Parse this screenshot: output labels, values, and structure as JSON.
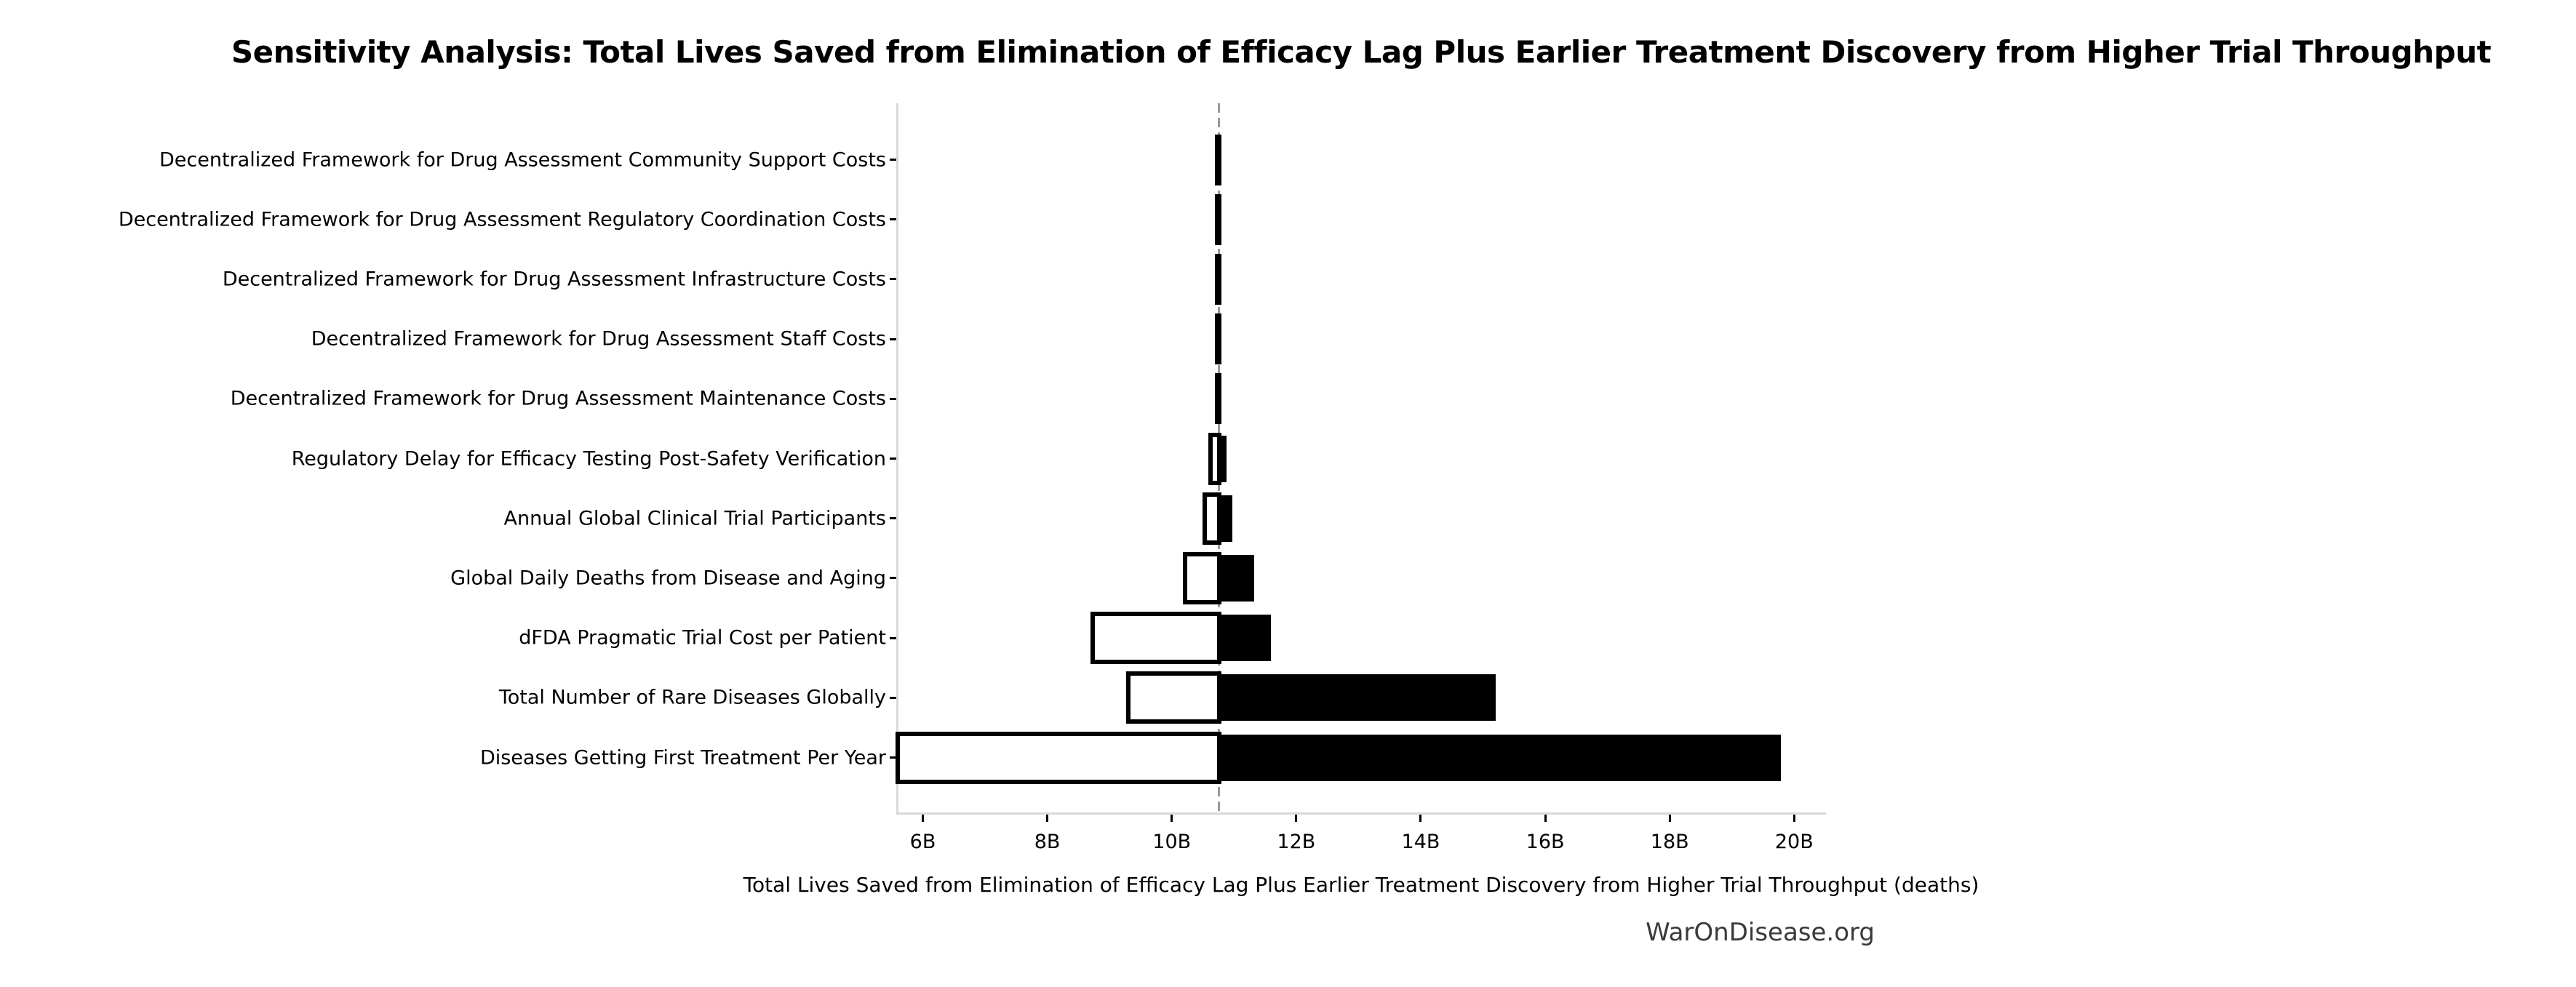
{
  "title": "Sensitivity Analysis: Total Lives Saved from Elimination of Efficacy Lag Plus Earlier Treatment Discovery from Higher Trial Throughput",
  "x_axis_label": "Total Lives Saved from Elimination of Efficacy Lag Plus Earlier Treatment Discovery from Higher Trial Throughput (deaths)",
  "watermark": "WarOnDisease.org",
  "colors": {
    "bar_high": "#000000",
    "bar_low_fill": "#ffffff",
    "bar_low_border": "#000000",
    "axis": "#d9d9d9",
    "baseline_dash": "#999999",
    "text": "#000000",
    "watermark_text": "#3a3a3a",
    "background": "#ffffff"
  },
  "chart_data": {
    "type": "bar",
    "subtype": "tornado-sensitivity",
    "orientation": "horizontal",
    "unit": "billions of deaths averted",
    "baseline_value": 10.76,
    "xlim": [
      5.6,
      20.5
    ],
    "grid": false,
    "legend": false,
    "x_ticks": [
      {
        "label": "6B",
        "value": 6
      },
      {
        "label": "8B",
        "value": 8
      },
      {
        "label": "10B",
        "value": 10
      },
      {
        "label": "12B",
        "value": 12
      },
      {
        "label": "14B",
        "value": 14
      },
      {
        "label": "16B",
        "value": 16
      },
      {
        "label": "18B",
        "value": 18
      },
      {
        "label": "20B",
        "value": 20
      }
    ],
    "rows": [
      {
        "label": "Decentralized Framework for Drug Assessment Community Support Costs",
        "low": 10.73,
        "high": 10.78
      },
      {
        "label": "Decentralized Framework for Drug Assessment Regulatory Coordination Costs",
        "low": 10.73,
        "high": 10.78
      },
      {
        "label": "Decentralized Framework for Drug Assessment Infrastructure Costs",
        "low": 10.73,
        "high": 10.78
      },
      {
        "label": "Decentralized Framework for Drug Assessment Staff Costs",
        "low": 10.73,
        "high": 10.78
      },
      {
        "label": "Decentralized Framework for Drug Assessment Maintenance Costs",
        "low": 10.73,
        "high": 10.78
      },
      {
        "label": "Regulatory Delay for Efficacy Testing Post-Safety Verification",
        "low": 10.62,
        "high": 10.88
      },
      {
        "label": "Annual Global Clinical Trial Participants",
        "low": 10.53,
        "high": 10.97
      },
      {
        "label": "Global Daily Deaths from Disease and Aging",
        "low": 10.21,
        "high": 11.32
      },
      {
        "label": "dFDA Pragmatic Trial Cost per Patient",
        "low": 8.73,
        "high": 11.59
      },
      {
        "label": "Total Number of Rare Diseases Globally",
        "low": 9.3,
        "high": 15.2
      },
      {
        "label": "Diseases Getting First Treatment Per Year",
        "low": 5.6,
        "high": 19.79
      }
    ]
  }
}
